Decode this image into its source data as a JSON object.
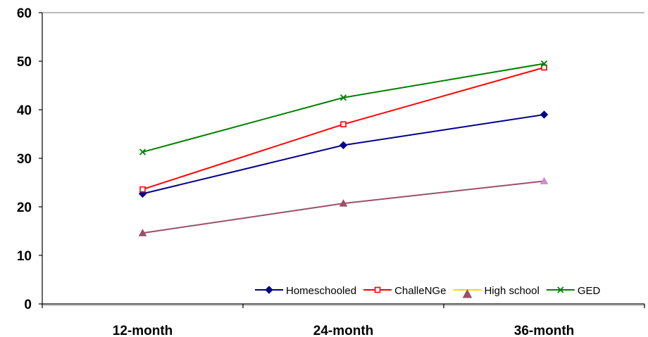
{
  "chart_data": {
    "type": "line",
    "categories": [
      "12-month",
      "24-month",
      "36-month"
    ],
    "series": [
      {
        "name": "Homeschooled",
        "values": [
          22.7,
          32.7,
          39.0
        ],
        "color": "#00008B",
        "marker": "diamond"
      },
      {
        "name": "ChalleNGe",
        "values": [
          23.6,
          37.0,
          48.7
        ],
        "color": "#FF0000",
        "marker": "square"
      },
      {
        "name": "High school",
        "values": [
          14.6,
          20.7,
          25.3
        ],
        "color": "#9B4F6A",
        "legend_color": "#FFD700",
        "marker": "triangle"
      },
      {
        "name": "GED",
        "values": [
          31.3,
          42.5,
          49.5
        ],
        "color": "#008000",
        "marker": "x"
      }
    ],
    "y_ticks": [
      "0",
      "10",
      "20",
      "30",
      "40",
      "50",
      "60"
    ],
    "ylim": [
      0,
      60
    ],
    "grid": false,
    "legend_position": "bottom-right inside plot"
  }
}
